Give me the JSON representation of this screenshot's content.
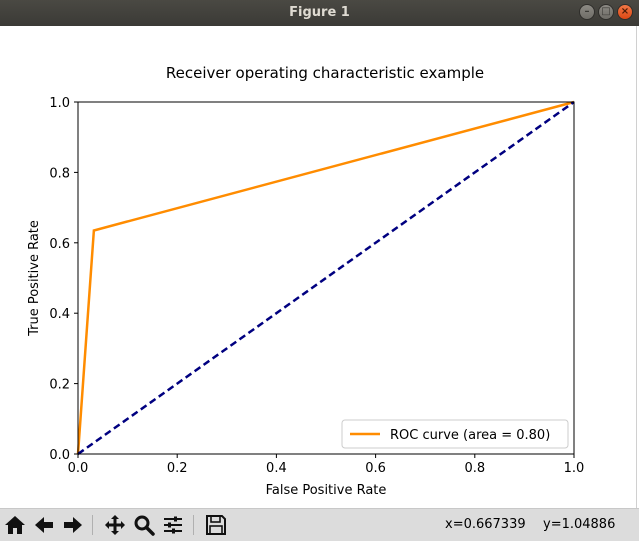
{
  "window": {
    "title": "Figure 1"
  },
  "toolbar": {
    "buttons": [
      "home-icon",
      "back-arrow-icon",
      "forward-arrow-icon",
      "pan-icon",
      "zoom-icon",
      "subplots-icon",
      "save-icon"
    ],
    "coord_x": "x=0.667339",
    "coord_y": "y=1.04886"
  },
  "chart_data": {
    "type": "line",
    "title": "Receiver operating characteristic example",
    "xlabel": "False Positive Rate",
    "ylabel": "True Positive Rate",
    "xlim": [
      0.0,
      1.0
    ],
    "ylim": [
      0.0,
      1.0
    ],
    "xticks": [
      "0.0",
      "0.2",
      "0.4",
      "0.6",
      "0.8",
      "1.0"
    ],
    "yticks": [
      "0.0",
      "0.2",
      "0.4",
      "0.6",
      "0.8",
      "1.0"
    ],
    "grid": false,
    "legend_position": "lower-right",
    "series": [
      {
        "name": "ROC curve (area = 0.80)",
        "color": "#ff8c00",
        "style": "solid",
        "x": [
          0.0,
          0.032,
          1.0
        ],
        "y": [
          0.0,
          0.635,
          1.0
        ]
      },
      {
        "color": "#000080",
        "style": "dashed",
        "x": [
          0.0,
          1.0
        ],
        "y": [
          0.0,
          1.0
        ]
      }
    ]
  }
}
